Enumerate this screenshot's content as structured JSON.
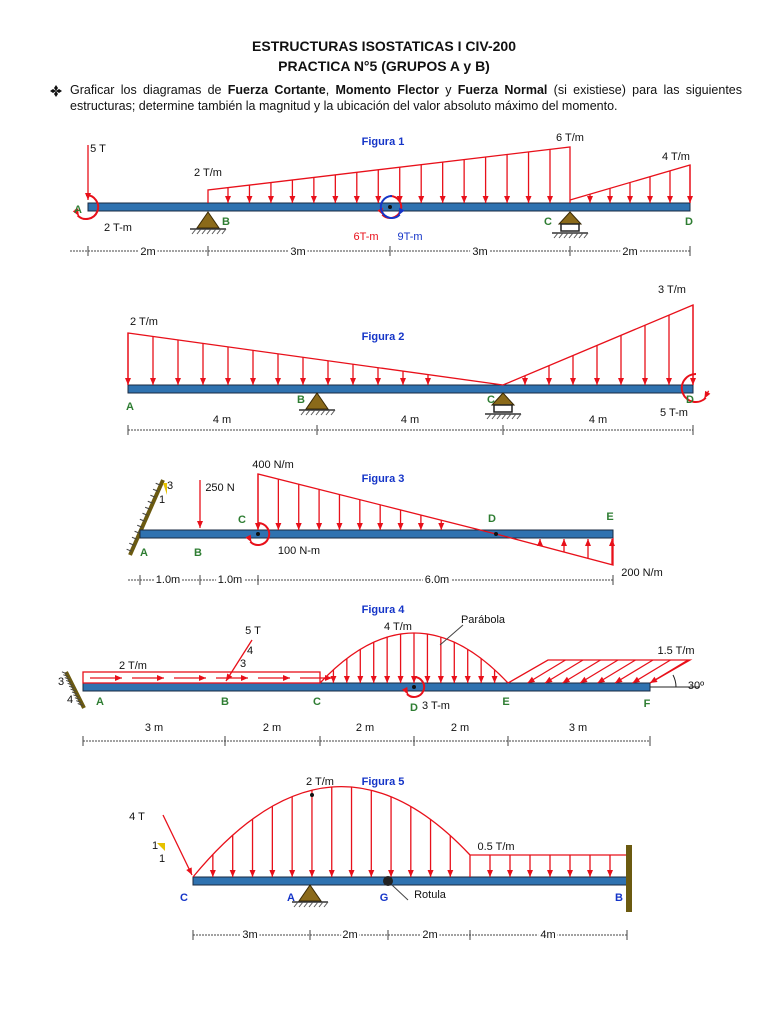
{
  "header": {
    "title": "ESTRUCTURAS ISOSTATICAS I CIV-200",
    "subtitle": "PRACTICA N°5 (GRUPOS A y B)"
  },
  "instructions": [
    "Graficar los diagramas de ",
    "Fuerza Cortante",
    ", ",
    "Momento Flector",
    " y ",
    "Fuerza Normal",
    " (si existiese) para las siguientes estructuras; determine también la magnitud y la ubicación del valor absoluto máximo del momento."
  ],
  "figures": [
    {
      "labels": [
        "Figura 1",
        "5 T",
        "2 T/m",
        "6 T/m",
        "4 T/m",
        "A",
        "2 T-m",
        "B",
        "6T-m",
        "9T-m",
        "C",
        "D",
        "2m",
        "3m",
        "3m",
        "2m"
      ]
    },
    {
      "labels": [
        "Figura 2",
        "2 T/m",
        "3 T/m",
        "A",
        "B",
        "C",
        "D",
        "5 T-m",
        "4 m",
        "4 m",
        "4 m"
      ]
    },
    {
      "labels": [
        "Figura 3",
        "3",
        "1",
        "250 N",
        "400 N/m",
        "C",
        "D",
        "E",
        "A",
        "B",
        "100 N-m",
        "200 N/m",
        "1.0m",
        "1.0m",
        "6.0m"
      ]
    },
    {
      "labels": [
        "Figura 4",
        "Parábola",
        "4 T/m",
        "5 T",
        "4",
        "3",
        "2 T/m",
        "1.5 T/m",
        "3",
        "4",
        "A",
        "B",
        "C",
        "D",
        "3 T-m",
        "E",
        "F",
        "30º",
        "3 m",
        "2 m",
        "2 m",
        "2 m",
        "3 m"
      ]
    },
    {
      "labels": [
        "Figura 5",
        "2 T/m",
        "4 T",
        "0.5 T/m",
        "1",
        "1",
        "C",
        "A",
        "G",
        "Rotula",
        "B",
        "3m",
        "2m",
        "2m",
        "4m"
      ]
    }
  ]
}
